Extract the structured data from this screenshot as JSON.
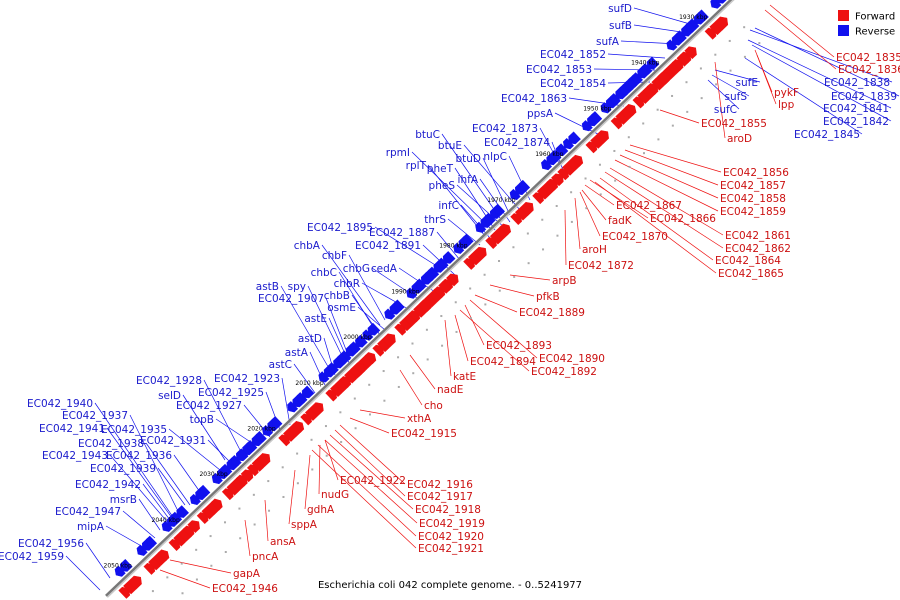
{
  "caption": "Escherichia coli 042 complete genome. - 0..5241977",
  "legend": [
    {
      "label": "Forward",
      "color": "#ee1111"
    },
    {
      "label": "Reverse",
      "color": "#1111ee"
    }
  ],
  "colors": {
    "forward": "#ee1111",
    "reverse": "#1111ee",
    "forward_label": "#cc1111",
    "reverse_label": "#1a1acc",
    "backbone": "#999999"
  },
  "ticks": [
    "1930 kbp",
    "1940 kbp",
    "1950 kbp",
    "1960 kbp",
    "1970 kbp",
    "1980 kbp",
    "1990 kbp",
    "2000 kbp",
    "2010 kbp",
    "2020 kbp",
    "2030 kbp",
    "2040 kbp",
    "2050 kbp"
  ],
  "reverse_labels": [
    "sufD",
    "sufB",
    "sufA",
    "EC042_1852",
    "EC042_1853",
    "EC042_1854",
    "EC042_1863",
    "ppsA",
    "btuC",
    "rpmI",
    "btuE",
    "EC042_1873",
    "EC042_1874",
    "rplT",
    "pheT",
    "btuD",
    "nlpC",
    "ihfA",
    "pheS",
    "infC",
    "thrS",
    "EC042_1895",
    "EC042_1887",
    "chbA",
    "EC042_1891",
    "chbF",
    "chbG",
    "cedA",
    "chbC",
    "chbR",
    "astB",
    "spy",
    "EC042_1907",
    "chbB",
    "osmE",
    "astE",
    "astD",
    "astA",
    "astC",
    "EC042_1928",
    "EC042_1923",
    "selD",
    "EC042_1925",
    "EC042_1940",
    "EC042_1927",
    "EC042_1937",
    "topB",
    "EC042_1941",
    "EC042_1935",
    "EC042_1931",
    "EC042_1938",
    "EC042_1943",
    "EC042_1936",
    "EC042_1939",
    "EC042_1942",
    "msrB",
    "EC042_1947",
    "mipA",
    "EC042_1956",
    "EC042_1959",
    "sufE",
    "sufS",
    "sufC",
    "EC042_1838",
    "EC042_1839",
    "EC042_1841",
    "EC042_1842",
    "EC042_1845"
  ],
  "forward_labels": [
    "EC042_1835",
    "EC042_1836",
    "pykF",
    "lpp",
    "aroD",
    "EC042_1855",
    "EC042_1856",
    "EC042_1857",
    "EC042_1858",
    "EC042_1859",
    "EC042_1861",
    "EC042_1862",
    "EC042_1864",
    "EC042_1865",
    "EC042_1867",
    "fadK",
    "EC042_1866",
    "aroH",
    "EC042_1870",
    "EC042_1872",
    "arpB",
    "pfkB",
    "EC042_1889",
    "EC042_1893",
    "EC042_1890",
    "EC042_1894",
    "EC042_1892",
    "katE",
    "nadE",
    "cho",
    "xthA",
    "EC042_1915",
    "EC042_1922",
    "EC042_1916",
    "EC042_1917",
    "nudG",
    "EC042_1918",
    "gdhA",
    "EC042_1919",
    "sppA",
    "EC042_1920",
    "ansA",
    "EC042_1921",
    "pncA",
    "gapA",
    "EC042_1946"
  ]
}
